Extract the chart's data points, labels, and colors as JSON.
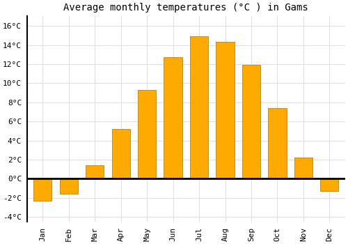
{
  "months": [
    "Jan",
    "Feb",
    "Mar",
    "Apr",
    "May",
    "Jun",
    "Jul",
    "Aug",
    "Sep",
    "Oct",
    "Nov",
    "Dec"
  ],
  "month_labels_short": [
    "Jan",
    "Feb",
    "Mar",
    "Apr",
    "May",
    "Jun",
    "Jul",
    "Aug",
    "Sep",
    "Oct",
    "Nov",
    "Dec"
  ],
  "values": [
    -2.3,
    -1.6,
    1.4,
    5.2,
    9.3,
    12.7,
    14.9,
    14.3,
    11.9,
    7.4,
    2.2,
    -1.3
  ],
  "bar_color": "#FFAA00",
  "bar_edge_color": "#AA7700",
  "title": "Average monthly temperatures (°C ) in Gams",
  "ylim": [
    -4.5,
    17
  ],
  "yticks": [
    -4,
    -2,
    0,
    2,
    4,
    6,
    8,
    10,
    12,
    14,
    16
  ],
  "ytick_labels": [
    "-4°C",
    "-2°C",
    "0°C",
    "2°C",
    "4°C",
    "6°C",
    "8°C",
    "10°C",
    "12°C",
    "14°C",
    "16°C"
  ],
  "background_color": "#ffffff",
  "grid_color": "#e0e0e0",
  "title_fontsize": 10,
  "tick_fontsize": 8,
  "label_fontsize": 8
}
